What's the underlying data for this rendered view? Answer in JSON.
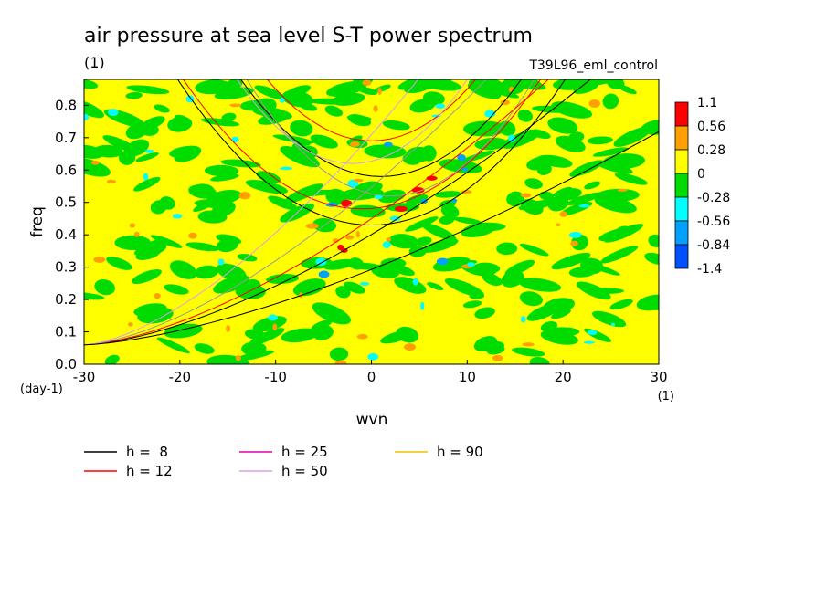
{
  "chart_data": {
    "type": "heatmap",
    "title": "air pressure at sea level S-T power spectrum",
    "units": "(1)",
    "run": "T39L96_eml_control",
    "xlabel": "wvn",
    "xunits": "(1)",
    "ylabel": "freq",
    "yunits": "(day-1)",
    "xlim": [
      -30,
      30
    ],
    "ylim": [
      0,
      0.88
    ],
    "x_ticks": [
      -30,
      -20,
      -10,
      0,
      10,
      20,
      30
    ],
    "x_tick_labels": [
      "-30",
      "-20",
      "-10",
      "0",
      "10",
      "20",
      "30"
    ],
    "y_ticks": [
      0,
      0.1,
      0.2,
      0.3,
      0.4,
      0.5,
      0.6,
      0.7,
      0.8
    ],
    "y_tick_labels": [
      "0.0",
      "0.1",
      "0.2",
      "0.3",
      "0.4",
      "0.5",
      "0.6",
      "0.7",
      "0.8"
    ],
    "colorbar": {
      "labels": [
        "1.1",
        "0.56",
        "0.28",
        "0",
        "-0.28",
        "-0.56",
        "-0.84",
        "-1.4"
      ],
      "colors": [
        "#ff0000",
        "#ffa000",
        "#ffff00",
        "#00dc00",
        "#00ffff",
        "#00a0ff",
        "#0050ff"
      ]
    },
    "field_colors": {
      "background": "#ffff00",
      "green": "#00dc00",
      "orange": "#ffa000",
      "red": "#ff0000",
      "cyan": "#00ffff",
      "blue": "#00a0ff"
    },
    "dispersion_curves": [
      {
        "label": "h =  8",
        "color": "#000000"
      },
      {
        "label": "h = 12",
        "color": "#ff0000"
      },
      {
        "label": "h = 25",
        "color": "#e000b0"
      },
      {
        "label": "h = 50",
        "color": "#d8a0e8"
      },
      {
        "label": "h = 90",
        "color": "#f0c000"
      }
    ]
  }
}
